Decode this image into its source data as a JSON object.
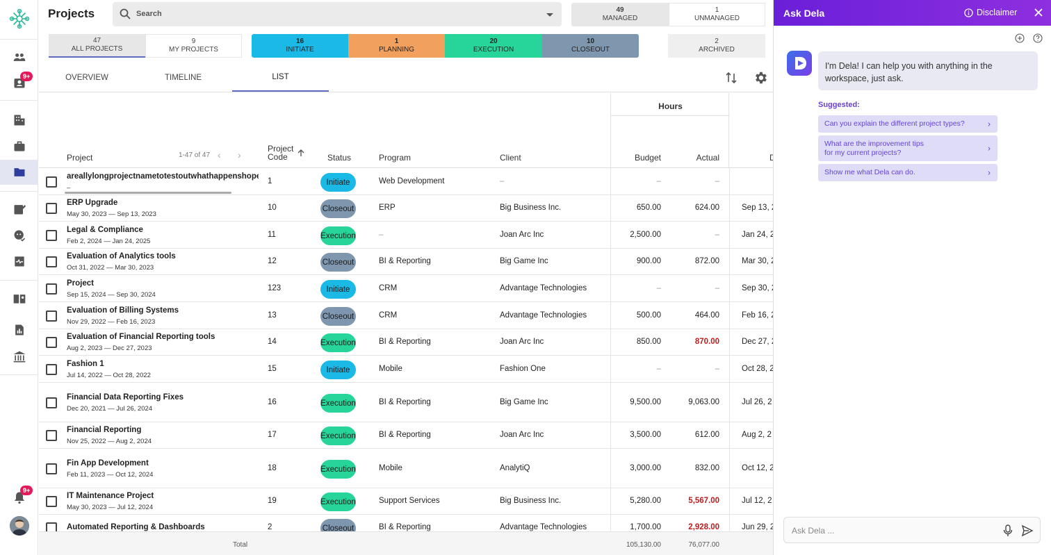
{
  "app": {
    "title": "Projects"
  },
  "search": {
    "placeholder": "Search"
  },
  "rail": {
    "badge_top": "9+",
    "badge_bell": "9+"
  },
  "managed": {
    "managed_count": "49",
    "managed_label": "MANAGED",
    "unmanaged_count": "1",
    "unmanaged_label": "UNMANAGED"
  },
  "filters": {
    "all": {
      "count": "47",
      "label": "ALL PROJECTS"
    },
    "mine": {
      "count": "9",
      "label": "MY PROJECTS"
    },
    "phases": [
      {
        "count": "16",
        "label": "INITIATE",
        "color": "#1ab9e6"
      },
      {
        "count": "1",
        "label": "PLANNING",
        "color": "#f2a05d"
      },
      {
        "count": "20",
        "label": "EXECUTION",
        "color": "#27d59b"
      },
      {
        "count": "10",
        "label": "CLOSEOUT",
        "color": "#7f97ae"
      }
    ],
    "archived": {
      "count": "2",
      "label": "ARCHIVED"
    }
  },
  "tabs": [
    "OVERVIEW",
    "TIMELINE",
    "LIST"
  ],
  "table": {
    "group_header": "Hours",
    "columns": {
      "project": "Project",
      "pagination": "1-47 of 47",
      "code_1": "Project",
      "code_2": "Code",
      "status": "Status",
      "program": "Program",
      "client": "Client",
      "budget": "Budget",
      "actual": "Actual",
      "due": "D"
    },
    "rows": [
      {
        "name": "areallylongprojectnametotestoutwhathappenshopefully",
        "dates": "–",
        "code": "1",
        "status": "Initiate",
        "program": "Web Development",
        "client": "–",
        "budget": "–",
        "actual": "–",
        "due": ""
      },
      {
        "name": "ERP Upgrade",
        "dates": "May 30, 2023 — Sep 13, 2023",
        "code": "10",
        "status": "Closeout",
        "program": "ERP",
        "client": "Big Business Inc.",
        "budget": "650.00",
        "actual": "624.00",
        "due": "Sep 13, 2"
      },
      {
        "name": "Legal & Compliance",
        "dates": "Feb 2, 2024 — Jan 24, 2025",
        "code": "11",
        "status": "Execution",
        "program": "–",
        "client": "Joan Arc Inc",
        "budget": "2,500.00",
        "actual": "–",
        "due": "Jan 24, 2"
      },
      {
        "name": "Evaluation of Analytics tools",
        "dates": "Oct 31, 2022 — Mar 30, 2023",
        "code": "12",
        "status": "Closeout",
        "program": "BI & Reporting",
        "client": "Big Game Inc",
        "budget": "900.00",
        "actual": "872.00",
        "due": "Mar 30, 2"
      },
      {
        "name": "Project",
        "dates": "Sep 15, 2024 — Sep 30, 2024",
        "code": "123",
        "status": "Initiate",
        "program": "CRM",
        "client": "Advantage Technologies",
        "budget": "–",
        "actual": "–",
        "due": "Sep 30, 2"
      },
      {
        "name": "Evaluation of Billing Systems",
        "dates": "Nov 29, 2022 — Feb 16, 2023",
        "code": "13",
        "status": "Closeout",
        "program": "CRM",
        "client": "Advantage Technologies",
        "budget": "500.00",
        "actual": "464.00",
        "due": "Feb 16, 2"
      },
      {
        "name": "Evaluation of Financial Reporting tools",
        "dates": "Aug 2, 2023 — Dec 27, 2023",
        "code": "14",
        "status": "Execution",
        "program": "BI & Reporting",
        "client": "Joan Arc Inc",
        "budget": "850.00",
        "actual": "870.00",
        "over": true,
        "due": "Dec 27, 2"
      },
      {
        "name": "Fashion 1",
        "dates": "Jul 14, 2022 — Oct 28, 2022",
        "code": "15",
        "status": "Initiate",
        "program": "Mobile",
        "client": "Fashion One",
        "budget": "–",
        "actual": "–",
        "due": "Oct 28, 2"
      },
      {
        "name": "Financial Data Reporting Fixes",
        "dates": "Dec 20, 2021 — Jul 26, 2024",
        "code": "16",
        "status": "Execution",
        "program": "BI & Reporting",
        "client": "Big Game Inc",
        "budget": "9,500.00",
        "actual": "9,063.00",
        "due": "Jul 26, 2"
      },
      {
        "name": "Financial Reporting",
        "dates": "Nov 25, 2022 — Aug 2, 2024",
        "code": "17",
        "status": "Execution",
        "program": "BI & Reporting",
        "client": "Joan Arc Inc",
        "budget": "3,500.00",
        "actual": "612.00",
        "due": "Aug 2, 2"
      },
      {
        "name": "Fin App Development",
        "dates": "Feb 11, 2023 — Oct 12, 2024",
        "code": "18",
        "status": "Execution",
        "program": "Mobile",
        "client": "AnalytiQ",
        "budget": "3,000.00",
        "actual": "832.00",
        "due": "Oct 12, 2"
      },
      {
        "name": "IT Maintenance Project",
        "dates": "May 30, 2023 — Jul 12, 2024",
        "code": "19",
        "status": "Execution",
        "program": "Support Services",
        "client": "Big Business Inc.",
        "budget": "5,280.00",
        "actual": "5,567.00",
        "over": true,
        "due": "Jul 12, 2"
      },
      {
        "name": "Automated Reporting & Dashboards",
        "dates": "",
        "code": "2",
        "status": "Closeout",
        "program": "BI & Reporting",
        "client": "Advantage Technologies",
        "budget": "1,700.00",
        "actual": "2,928.00",
        "over": true,
        "due": "Jun 29, 2"
      }
    ],
    "total": {
      "label": "Total",
      "budget": "105,130.00",
      "actual": "76,077.00"
    }
  },
  "status_colors": {
    "Initiate": "#1ab9e6",
    "Closeout": "#7f97ae",
    "Execution": "#27d59b"
  },
  "panel": {
    "title": "Ask Dela",
    "disclaimer": "Disclaimer",
    "message": "I'm Dela! I can help you with anything in the workspace, just ask.",
    "suggested_label": "Suggested:",
    "suggestions": [
      "Can you explain the different project types?",
      "What are the improvement tips\nfor my current projects?",
      "Show me what Dela can do."
    ],
    "input_placeholder": "Ask Dela ..."
  }
}
